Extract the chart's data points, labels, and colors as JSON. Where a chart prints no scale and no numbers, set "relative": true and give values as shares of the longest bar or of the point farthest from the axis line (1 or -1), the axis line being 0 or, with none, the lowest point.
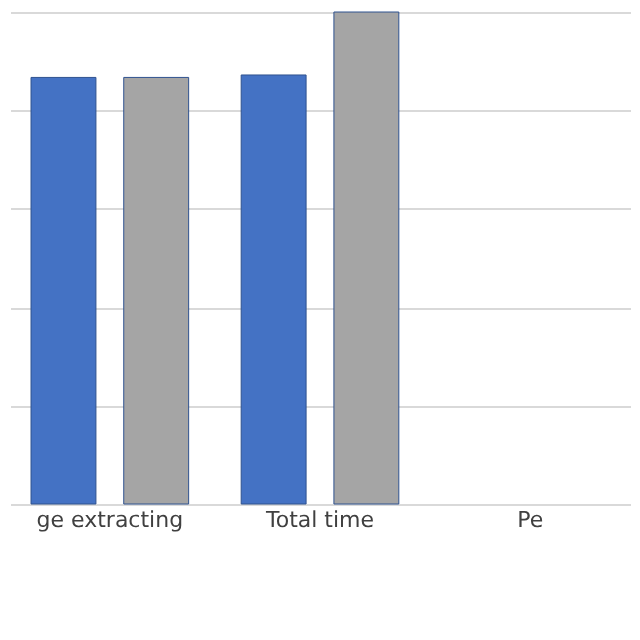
{
  "chart_data": {
    "type": "bar",
    "relative": true,
    "categories": [
      "ge extracting",
      "Total time",
      "Pe"
    ],
    "series": [
      {
        "color": "#4472c4",
        "values": [
          0.867,
          0.872,
          null
        ]
      },
      {
        "color": "#a5a5a5",
        "values": [
          0.867,
          1,
          null
        ]
      }
    ],
    "grid": "y"
  }
}
